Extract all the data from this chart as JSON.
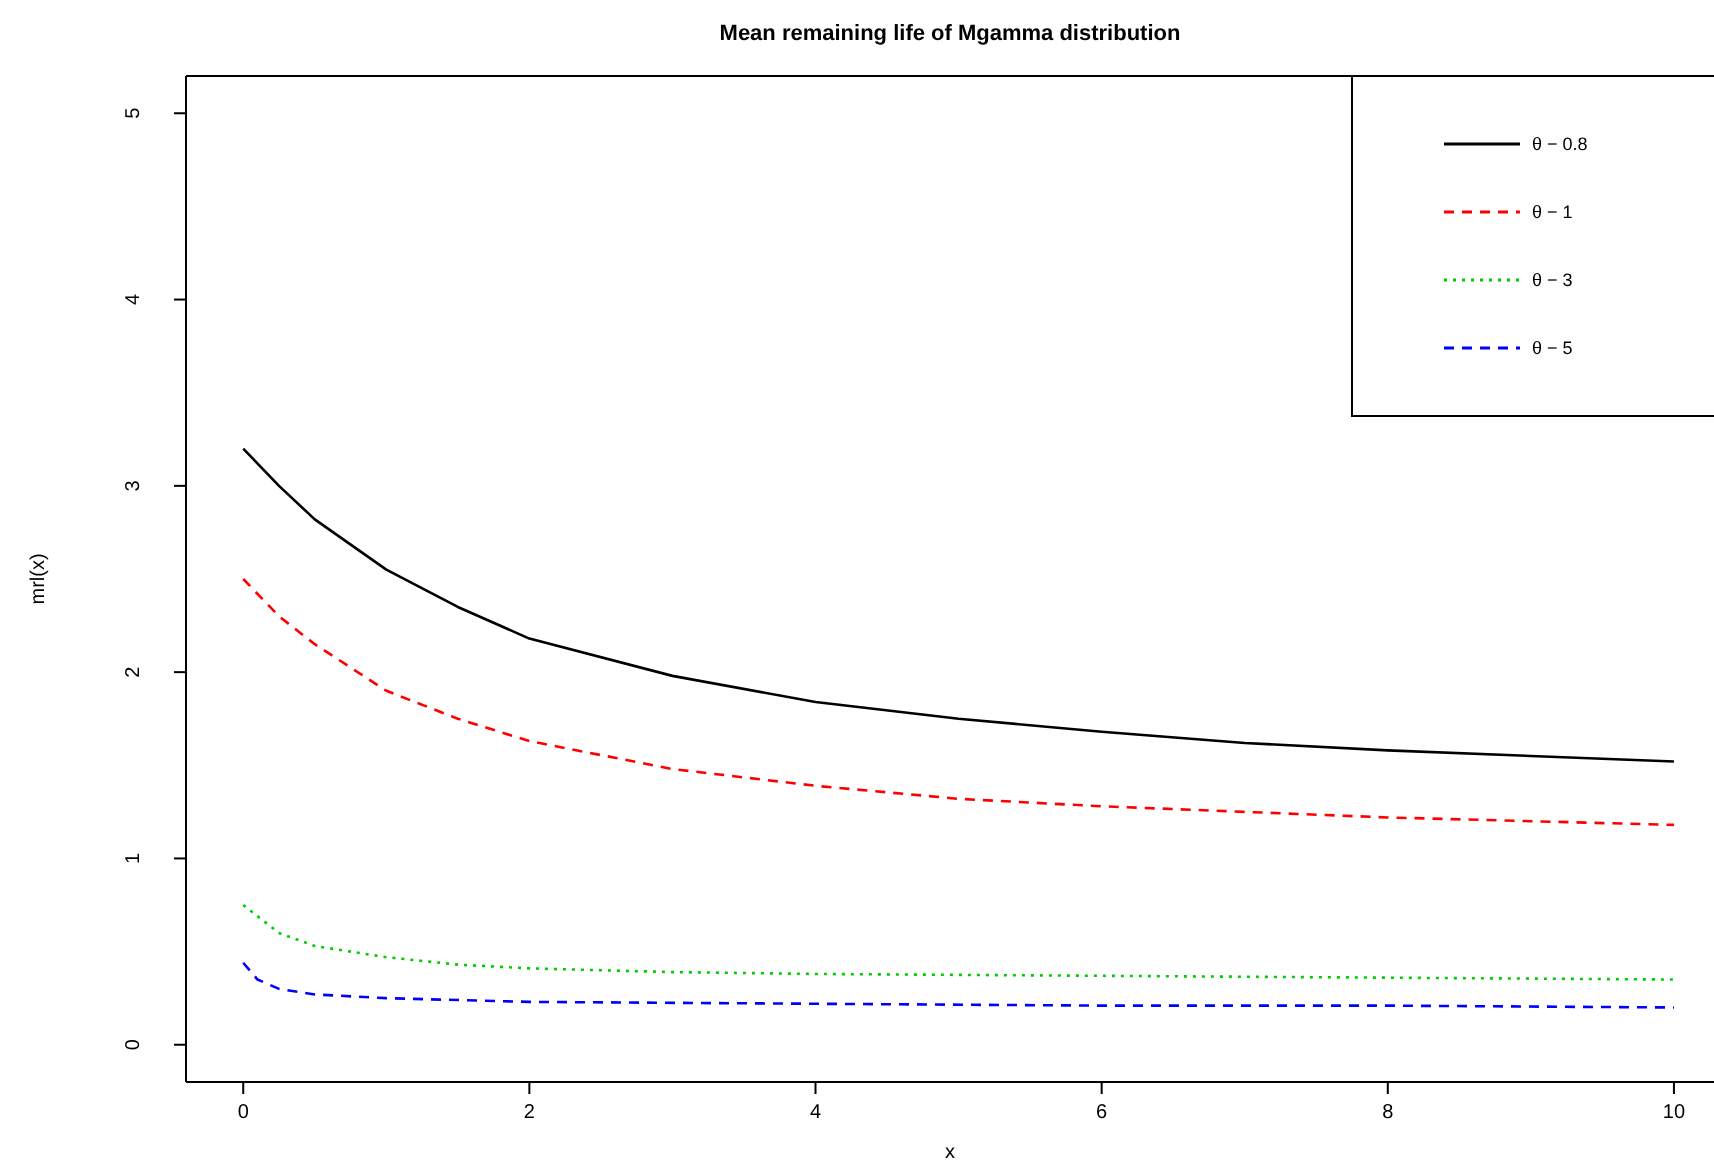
{
  "chart_data": {
    "type": "line",
    "title": "Mean remaining life of Mgamma distribution",
    "xlabel": "x",
    "ylabel": "mrl(x)",
    "xlim": [
      -0.4,
      10.28
    ],
    "ylim": [
      -0.2,
      5.2
    ],
    "xticks": [
      0,
      2,
      4,
      6,
      8,
      10
    ],
    "yticks": [
      0,
      1,
      2,
      3,
      4,
      5
    ],
    "legend": "top right",
    "grid": false,
    "series": [
      {
        "name": "θ − 0.8",
        "color": "#000000",
        "line_style": "solid",
        "x": [
          0,
          0.25,
          0.5,
          1,
          1.5,
          2,
          3,
          4,
          5,
          6,
          7,
          8,
          9,
          10
        ],
        "values": [
          3.2,
          3.0,
          2.82,
          2.55,
          2.35,
          2.18,
          1.98,
          1.84,
          1.75,
          1.68,
          1.62,
          1.58,
          1.55,
          1.52
        ]
      },
      {
        "name": "θ − 1",
        "color": "#ff0000",
        "line_style": "dashed",
        "x": [
          0,
          0.25,
          0.5,
          1,
          1.5,
          2,
          3,
          4,
          5,
          6,
          7,
          8,
          9,
          10
        ],
        "values": [
          2.5,
          2.3,
          2.15,
          1.9,
          1.75,
          1.63,
          1.48,
          1.39,
          1.32,
          1.28,
          1.25,
          1.22,
          1.2,
          1.18
        ]
      },
      {
        "name": "θ − 3",
        "color": "#00cd00",
        "line_style": "dotted",
        "x": [
          0,
          0.25,
          0.5,
          1,
          1.5,
          2,
          3,
          4,
          6,
          8,
          10
        ],
        "values": [
          0.75,
          0.6,
          0.53,
          0.47,
          0.43,
          0.41,
          0.39,
          0.38,
          0.37,
          0.36,
          0.35
        ]
      },
      {
        "name": "θ − 5",
        "color": "#0000ff",
        "line_style": "dashed",
        "x": [
          0,
          0.1,
          0.25,
          0.5,
          1,
          2,
          4,
          6,
          8,
          10
        ],
        "values": [
          0.44,
          0.35,
          0.3,
          0.27,
          0.25,
          0.23,
          0.22,
          0.21,
          0.21,
          0.2
        ]
      }
    ]
  }
}
